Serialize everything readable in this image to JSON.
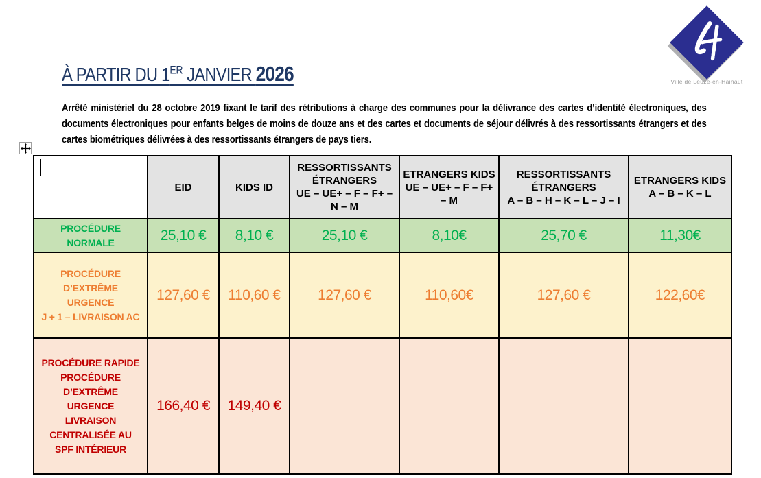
{
  "document": {
    "title": {
      "text_before_sup": "À PARTIR DU 1",
      "sup": "ER",
      "text_after_sup": " JANVIER ",
      "year": "2026",
      "color": "#1f3864"
    },
    "intro": "Arrêté ministériel du 28 octobre 2019 fixant le tarif des rétributions à charge des communes pour la délivrance des cartes d’identité électroniques, des documents électroniques pour enfants belges de moins de douze ans et des cartes et documents de séjour délivrés à des ressortissants étrangers et des cartes biométriques délivrées à des ressortissants étrangers de pays tiers.",
    "logo": {
      "caption": "Ville de Leuze-en-Hainaut",
      "monogram": "LH",
      "diamond_color": "#2b2e90",
      "caption_color": "#9a9a9a"
    }
  },
  "table": {
    "header_bg": "#e3e3e3",
    "border_color": "#000000",
    "header": [
      {
        "name_lines": [],
        "code_lines": []
      },
      {
        "name_lines": [
          "EID"
        ],
        "code_lines": []
      },
      {
        "name_lines": [
          "KIDS ID"
        ],
        "code_lines": []
      },
      {
        "name_lines": [
          "RESSORTISSANTS",
          "ÉTRANGERS"
        ],
        "code_lines": [
          "UE – UE+ – F – F+ –",
          "N – M"
        ]
      },
      {
        "name_lines": [
          "ETRANGERS KIDS"
        ],
        "code_lines": [
          "UE – UE+ – F – F+",
          "– M"
        ]
      },
      {
        "name_lines": [
          "RESSORTISSANTS",
          "ÉTRANGERS"
        ],
        "code_lines": [
          "A – B – H – K – L – J – I"
        ]
      },
      {
        "name_lines": [
          "ETRANGERS KIDS"
        ],
        "code_lines": [
          "A – B – K – L"
        ]
      }
    ],
    "rows": [
      {
        "id": "procedure-normale",
        "label_lines": [
          "PROCÉDURE",
          "NORMALE"
        ],
        "values": [
          "25,10 €",
          "8,10 €",
          "25,10 €",
          "8,10€",
          "25,70 €",
          "11,30€"
        ],
        "text_color": "#00b050",
        "bg_color": "#c7e1b5"
      },
      {
        "id": "procedure-extreme-urgence",
        "label_lines": [
          "PROCÉDURE",
          "D’EXTRÊME",
          "URGENCE",
          "J + 1 – LIVRAISON AC"
        ],
        "values": [
          "127,60 €",
          "110,60 €",
          "127,60 €",
          "110,60€",
          "127,60 €",
          "122,60€"
        ],
        "text_color": "#ed7d31",
        "bg_color": "#fdf2cc"
      },
      {
        "id": "procedure-rapide-centralisee",
        "label_lines": [
          "PROCÉDURE RAPIDE",
          "PROCÉDURE",
          "D’EXTRÊME",
          "URGENCE",
          "LIVRAISON",
          "CENTRALISÉE AU",
          "SPF INTÉRIEUR"
        ],
        "values": [
          "166,40 €",
          "149,40 €",
          "",
          "",
          "",
          ""
        ],
        "text_color": "#c00000",
        "bg_color": "#fbe5d6"
      }
    ]
  }
}
